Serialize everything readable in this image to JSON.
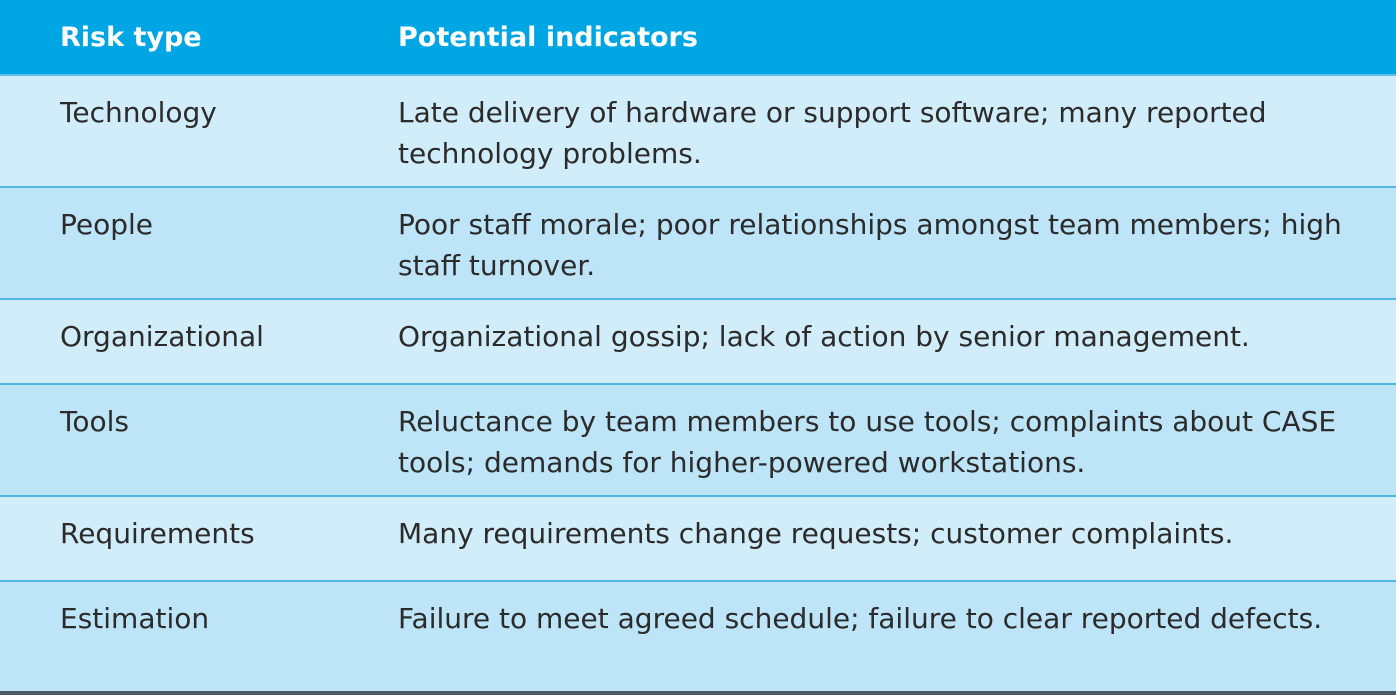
{
  "table": {
    "headers": [
      "Risk type",
      "Potential indicators"
    ],
    "rows": [
      {
        "risk_type": "Technology",
        "indicators": "Late delivery of hardware or support software; many reported technology problems."
      },
      {
        "risk_type": "People",
        "indicators": "Poor staff morale; poor relationships amongst team members; high staff turnover."
      },
      {
        "risk_type": "Organizational",
        "indicators": "Organizational gossip; lack of action by senior management."
      },
      {
        "risk_type": "Tools",
        "indicators": "Reluctance by team members to use tools; complaints about CASE tools; demands for higher-powered workstations."
      },
      {
        "risk_type": "Requirements",
        "indicators": "Many requirements change requests; customer complaints."
      },
      {
        "risk_type": "Estimation",
        "indicators": "Failure to meet agreed schedule; failure to clear reported defects."
      }
    ]
  },
  "colors": {
    "header_bg": "#00a6e3",
    "row_light": "#d2edfa",
    "row_dark": "#bde4f7",
    "text": "#2b2b2b"
  }
}
